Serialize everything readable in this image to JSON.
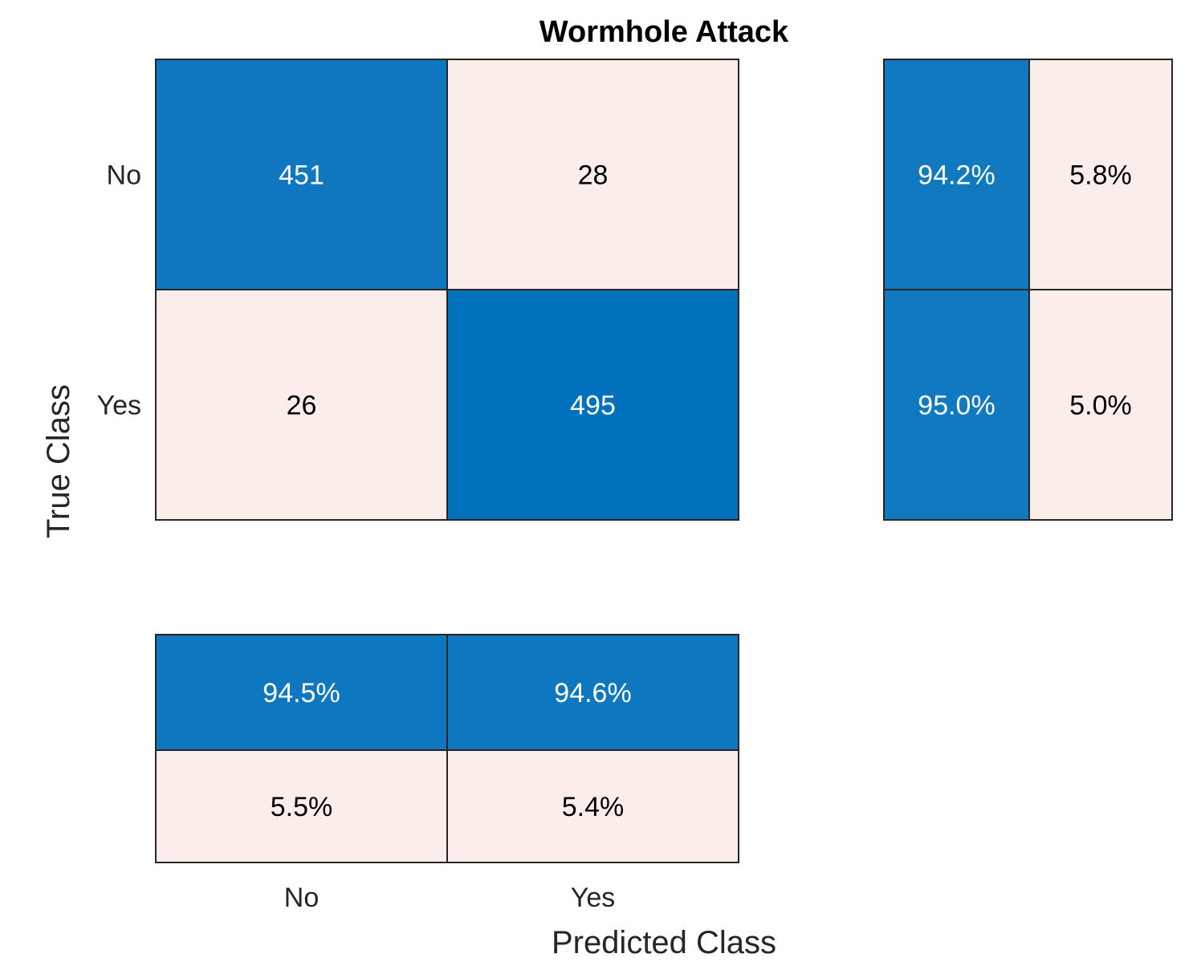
{
  "chart_data": {
    "type": "heatmap",
    "title": "Wormhole Attack",
    "xlabel": "Predicted Class",
    "ylabel": "True Class",
    "classes": [
      "No",
      "Yes"
    ],
    "matrix": [
      [
        451,
        28
      ],
      [
        26,
        495
      ]
    ],
    "row_summary": [
      [
        "94.2%",
        "5.8%"
      ],
      [
        "95.0%",
        "5.0%"
      ]
    ],
    "column_summary": [
      [
        "94.5%",
        "94.6%"
      ],
      [
        "5.5%",
        "5.4%"
      ]
    ],
    "grid": false
  },
  "colors": {
    "correct_strong": "#0072BD",
    "correct_medium": "#0E77C0",
    "correct_row_summary": "#1079BF",
    "incorrect": "#FBEDE9",
    "text_on_dark": "#FFFFFF",
    "text_on_light": "#000000",
    "border": "#262626"
  }
}
